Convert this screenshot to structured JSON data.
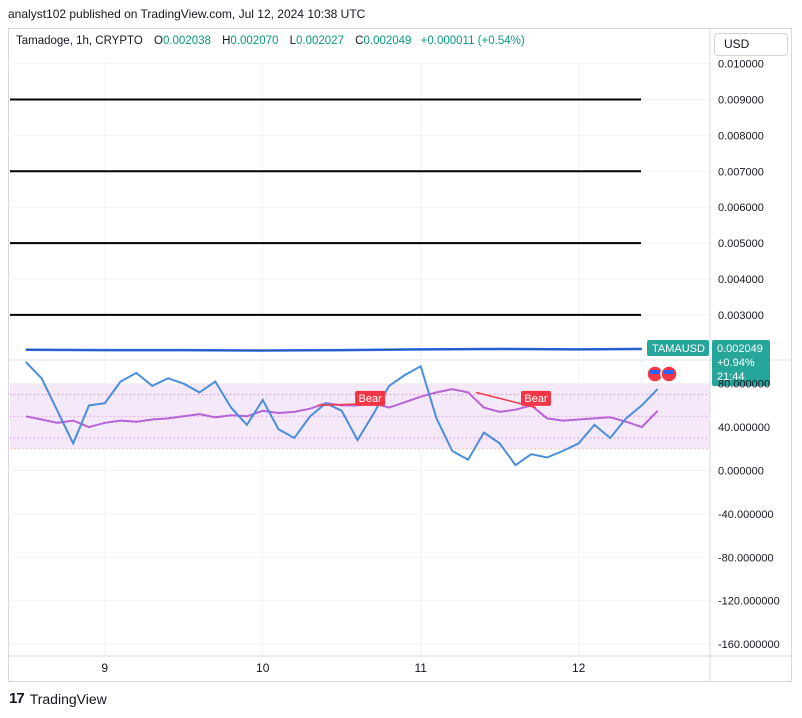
{
  "header": {
    "publisher_text": "analyst102 published on TradingView.com, Jul 12, 2024 10:38 UTC"
  },
  "legend": {
    "symbol": "Tamadoge, 1h, CRYPTO",
    "open_label": "O",
    "open_value": "0.002038",
    "high_label": "H",
    "high_value": "0.002070",
    "low_label": "L",
    "low_value": "0.002027",
    "close_label": "C",
    "close_value": "0.002049",
    "change": "+0.000011 (+0.54%)"
  },
  "currency": "USD",
  "footer": {
    "brand": "TradingView",
    "mark": "17"
  },
  "colors": {
    "price_line": "#2962ff",
    "badge": "#26a69a",
    "rsi": "#b863d6",
    "stoch": "#4a8ede",
    "bear": "#f23645",
    "band": "#f3e6f8"
  },
  "chart_data": [
    {
      "type": "line",
      "name_label": "TAMAUSD",
      "price_badge": "0.002049",
      "change_badge": "+0.94%",
      "time_badge": "21:44",
      "y_scale_labels": [
        "0.010000",
        "0.009000",
        "0.008000",
        "0.007000",
        "0.006000",
        "0.005000",
        "0.004000",
        "0.003000"
      ],
      "y_ticks": [
        0.01,
        0.009,
        0.008,
        0.007,
        0.006,
        0.005,
        0.004,
        0.003
      ],
      "ylim": [
        0.0018,
        0.0101
      ],
      "horizontal_levels": [
        0.009,
        0.007,
        0.005,
        0.003
      ],
      "x_tick_labels": [
        "9",
        "10",
        "11",
        "12"
      ],
      "x_ticks": [
        0.5,
        1.5,
        2.5,
        3.5
      ],
      "xlim": [
        -0.1,
        4.3
      ],
      "x": [
        0.0,
        0.5,
        1.0,
        1.5,
        2.0,
        2.5,
        3.0,
        3.5,
        3.9
      ],
      "values": [
        0.00203,
        0.00202,
        0.00202,
        0.00201,
        0.00202,
        0.00204,
        0.00205,
        0.00204,
        0.00205
      ]
    },
    {
      "type": "line",
      "y_scale_labels": [
        "80.000000",
        "40.000000",
        "0.000000",
        "-40.000000",
        "-80.000000",
        "-120.000000",
        "-160.000000"
      ],
      "y_ticks": [
        80,
        40,
        0,
        -40,
        -80,
        -120,
        -160
      ],
      "ylim": [
        -170,
        100
      ],
      "band": [
        20,
        80
      ],
      "dotted_levels": [
        70,
        50,
        30
      ],
      "x_tick_labels": [
        "9",
        "10",
        "11",
        "12"
      ],
      "x_ticks": [
        0.5,
        1.5,
        2.5,
        3.5
      ],
      "xlim": [
        -0.1,
        4.3
      ],
      "annotations": [
        {
          "text": "Bear",
          "x": 2.18,
          "y": 66
        },
        {
          "text": "Bear",
          "x": 3.23,
          "y": 66
        }
      ],
      "series": [
        {
          "x": [
            0.0,
            0.1,
            0.2,
            0.3,
            0.4,
            0.5,
            0.6,
            0.7,
            0.8,
            0.9,
            1.0,
            1.1,
            1.2,
            1.3,
            1.4,
            1.5,
            1.6,
            1.7,
            1.8,
            1.9,
            2.0,
            2.1,
            2.2,
            2.3,
            2.4,
            2.5,
            2.6,
            2.7,
            2.8,
            2.9,
            3.0,
            3.1,
            3.2,
            3.3,
            3.4,
            3.5,
            3.6,
            3.7,
            3.8,
            3.9,
            4.0
          ],
          "values": [
            50,
            47,
            44,
            46,
            40,
            44,
            46,
            45,
            47,
            48,
            50,
            52,
            49,
            51,
            50,
            55,
            53,
            54,
            57,
            62,
            60,
            60,
            62,
            58,
            63,
            68,
            72,
            75,
            72,
            58,
            54,
            56,
            60,
            48,
            46,
            47,
            48,
            49,
            45,
            40,
            55
          ]
        },
        {
          "x": [
            0.0,
            0.1,
            0.2,
            0.3,
            0.4,
            0.5,
            0.6,
            0.7,
            0.8,
            0.9,
            1.0,
            1.1,
            1.2,
            1.3,
            1.4,
            1.5,
            1.6,
            1.7,
            1.8,
            1.9,
            2.0,
            2.1,
            2.2,
            2.3,
            2.4,
            2.5,
            2.6,
            2.7,
            2.8,
            2.9,
            3.0,
            3.1,
            3.2,
            3.3,
            3.4,
            3.5,
            3.6,
            3.7,
            3.8,
            3.9,
            4.0
          ],
          "values": [
            100,
            85,
            55,
            25,
            60,
            62,
            82,
            90,
            78,
            85,
            80,
            72,
            82,
            58,
            42,
            65,
            38,
            30,
            50,
            62,
            55,
            28,
            52,
            78,
            88,
            96,
            48,
            18,
            10,
            35,
            25,
            5,
            15,
            12,
            18,
            25,
            42,
            30,
            48,
            60,
            75
          ]
        }
      ]
    }
  ]
}
